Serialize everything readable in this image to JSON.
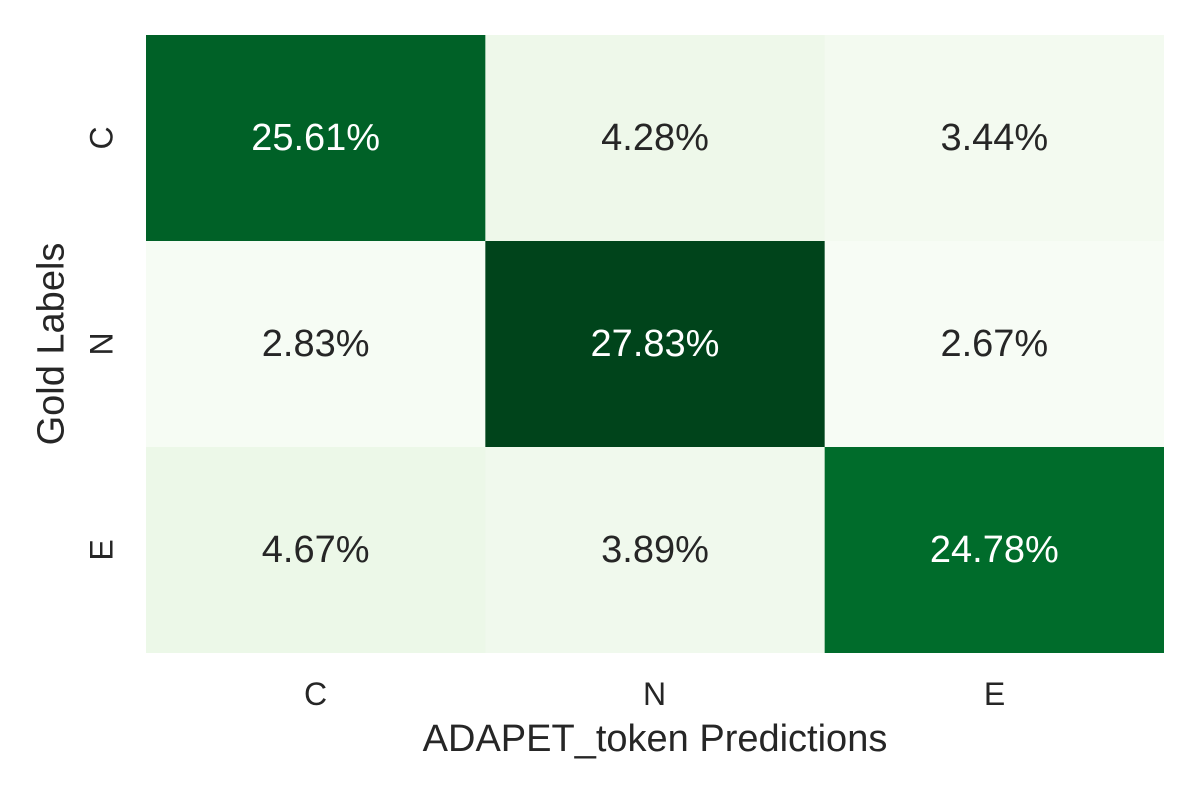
{
  "chart_data": {
    "type": "heatmap",
    "title": "",
    "xlabel": "ADAPET_token Predictions",
    "ylabel": "Gold Labels",
    "x_categories": [
      "C",
      "N",
      "E"
    ],
    "y_categories": [
      "C",
      "N",
      "E"
    ],
    "values": [
      [
        25.61,
        4.28,
        3.44
      ],
      [
        2.83,
        27.83,
        2.67
      ],
      [
        4.67,
        3.89,
        24.78
      ]
    ],
    "labels": [
      [
        "25.61%",
        "4.28%",
        "3.44%"
      ],
      [
        "2.83%",
        "27.83%",
        "2.67%"
      ],
      [
        "4.67%",
        "3.89%",
        "24.78%"
      ]
    ],
    "colormap": "Greens",
    "colorbar": false,
    "color_low": "#f7fcf5",
    "color_high": "#00441b",
    "text_dark": "#262626",
    "text_light": "#ffffff"
  }
}
